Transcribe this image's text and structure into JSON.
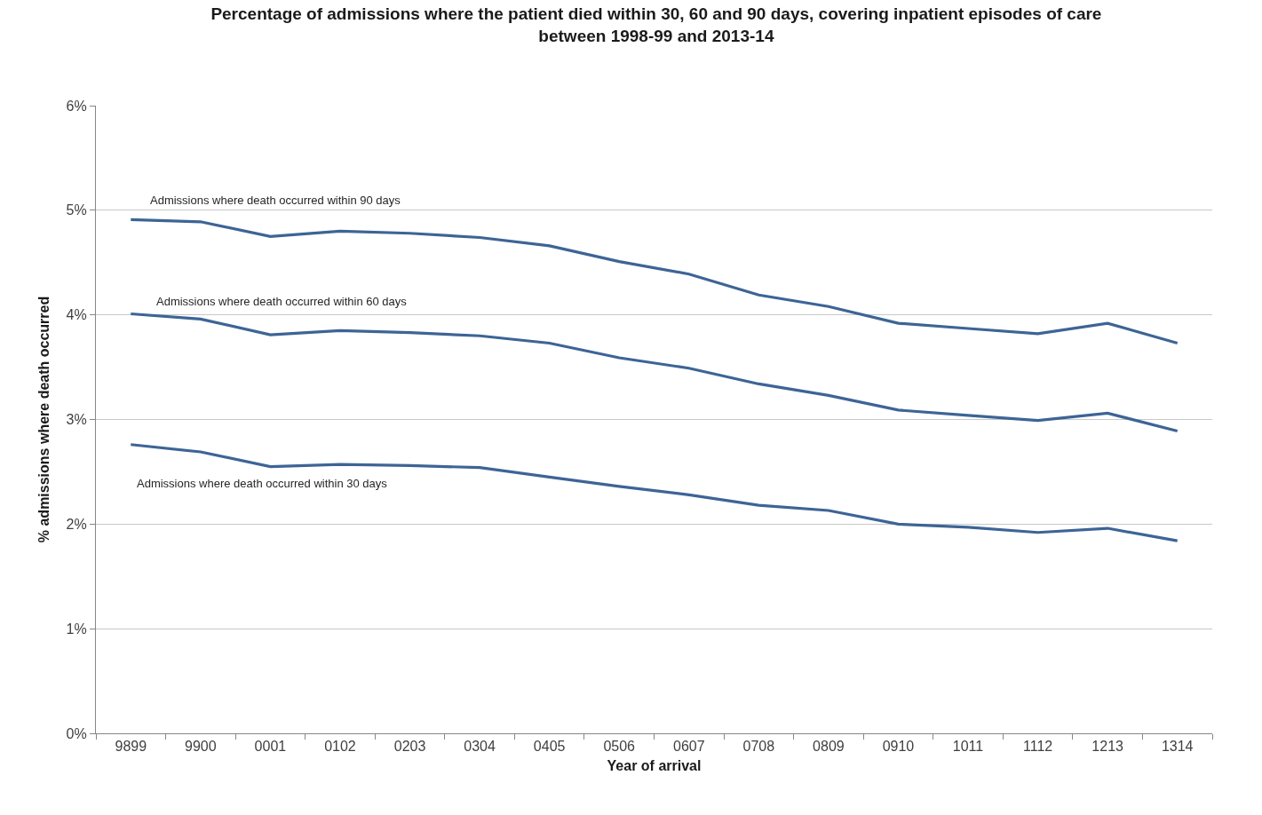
{
  "chart_data": {
    "type": "line",
    "title": "Percentage of admissions where the patient died within 30, 60 and 90 days, covering inpatient episodes of care\nbetween 1998-99 and 2013-14",
    "xlabel": "Year of arrival",
    "ylabel": "% admissions where death occurred",
    "categories": [
      "9899",
      "9900",
      "0001",
      "0102",
      "0203",
      "0304",
      "0405",
      "0506",
      "0607",
      "0708",
      "0809",
      "0910",
      "1011",
      "1112",
      "1213",
      "1314"
    ],
    "series": [
      {
        "name": "Admissions where death occurred within 90 days",
        "color": "#3d6496",
        "values": [
          4.91,
          4.89,
          4.75,
          4.8,
          4.78,
          4.74,
          4.66,
          4.51,
          4.39,
          4.19,
          4.08,
          3.92,
          3.87,
          3.82,
          3.92,
          3.73
        ]
      },
      {
        "name": "Admissions where death occurred within 60 days",
        "color": "#3d6496",
        "values": [
          4.01,
          3.96,
          3.81,
          3.85,
          3.83,
          3.8,
          3.73,
          3.59,
          3.49,
          3.34,
          3.23,
          3.09,
          3.04,
          2.99,
          3.06,
          2.89
        ]
      },
      {
        "name": "Admissions where death occurred within 30 days",
        "color": "#3d6496",
        "values": [
          2.76,
          2.69,
          2.55,
          2.57,
          2.56,
          2.54,
          2.45,
          2.36,
          2.28,
          2.18,
          2.13,
          2.0,
          1.97,
          1.92,
          1.96,
          1.84
        ]
      }
    ],
    "ylim": [
      0,
      6
    ],
    "yticks": [
      {
        "value": 0,
        "label": "0%"
      },
      {
        "value": 1,
        "label": "1%"
      },
      {
        "value": 2,
        "label": "2%"
      },
      {
        "value": 3,
        "label": "3%"
      },
      {
        "value": 4,
        "label": "4%"
      },
      {
        "value": 5,
        "label": "5%"
      },
      {
        "value": 6,
        "label": "6%"
      }
    ],
    "grid": "y",
    "legend": false,
    "marker": "none",
    "line_style": "solid"
  }
}
